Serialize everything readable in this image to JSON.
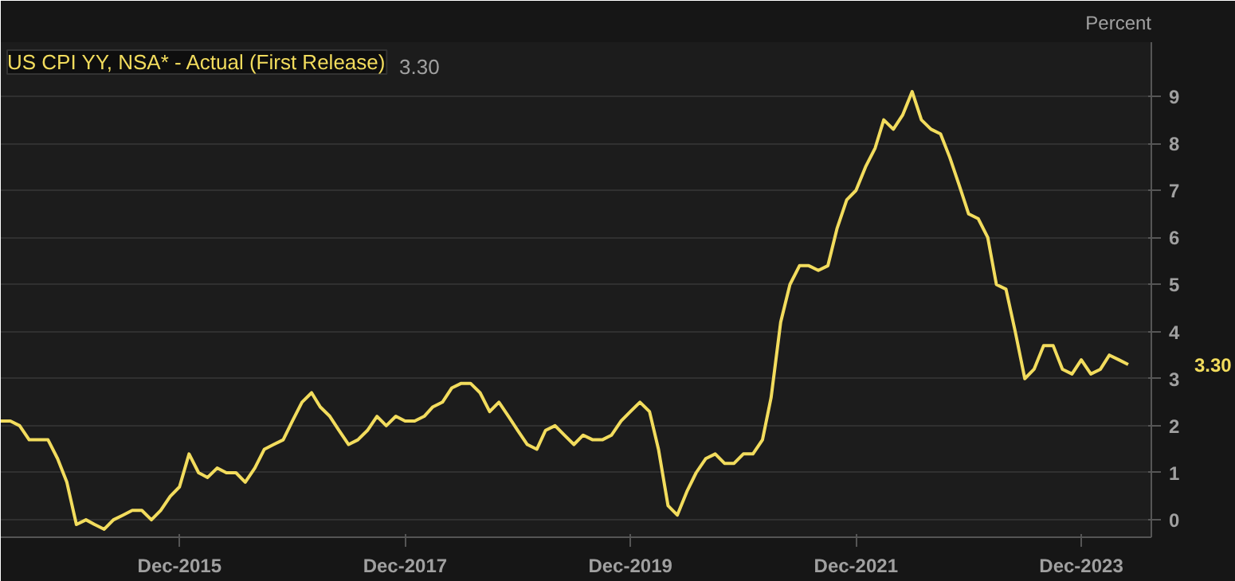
{
  "chart_data": {
    "type": "line",
    "title": "US CPI YY, NSA* - Actual (First Release)",
    "ylabel": "Percent",
    "annotations": [
      "3.30",
      "3.30"
    ],
    "x": [
      "2014-05",
      "2014-06",
      "2014-07",
      "2014-08",
      "2014-09",
      "2014-10",
      "2014-11",
      "2014-12",
      "2015-01",
      "2015-02",
      "2015-03",
      "2015-04",
      "2015-05",
      "2015-06",
      "2015-07",
      "2015-08",
      "2015-09",
      "2015-10",
      "2015-11",
      "2015-12",
      "2016-01",
      "2016-02",
      "2016-03",
      "2016-04",
      "2016-05",
      "2016-06",
      "2016-07",
      "2016-08",
      "2016-09",
      "2016-10",
      "2016-11",
      "2016-12",
      "2017-01",
      "2017-02",
      "2017-03",
      "2017-04",
      "2017-05",
      "2017-06",
      "2017-07",
      "2017-08",
      "2017-09",
      "2017-10",
      "2017-11",
      "2017-12",
      "2018-01",
      "2018-02",
      "2018-03",
      "2018-04",
      "2018-05",
      "2018-06",
      "2018-07",
      "2018-08",
      "2018-09",
      "2018-10",
      "2018-11",
      "2018-12",
      "2019-01",
      "2019-02",
      "2019-03",
      "2019-04",
      "2019-05",
      "2019-06",
      "2019-07",
      "2019-08",
      "2019-09",
      "2019-10",
      "2019-11",
      "2019-12",
      "2020-01",
      "2020-02",
      "2020-03",
      "2020-04",
      "2020-05",
      "2020-06",
      "2020-07",
      "2020-08",
      "2020-09",
      "2020-10",
      "2020-11",
      "2020-12",
      "2021-01",
      "2021-02",
      "2021-03",
      "2021-04",
      "2021-05",
      "2021-06",
      "2021-07",
      "2021-08",
      "2021-09",
      "2021-10",
      "2021-11",
      "2021-12",
      "2022-01",
      "2022-02",
      "2022-03",
      "2022-04",
      "2022-05",
      "2022-06",
      "2022-07",
      "2022-08",
      "2022-09",
      "2022-10",
      "2022-11",
      "2022-12",
      "2023-01",
      "2023-02",
      "2023-03",
      "2023-04",
      "2023-05",
      "2023-06",
      "2023-07",
      "2023-08",
      "2023-09",
      "2023-10",
      "2023-11",
      "2023-12",
      "2024-01",
      "2024-02",
      "2024-03",
      "2024-04",
      "2024-05"
    ],
    "series": [
      {
        "color": "#f2dc5d",
        "values": [
          2.1,
          2.1,
          2.0,
          1.7,
          1.7,
          1.7,
          1.3,
          0.8,
          -0.1,
          0.0,
          -0.1,
          -0.2,
          0.0,
          0.1,
          0.2,
          0.2,
          0.0,
          0.2,
          0.5,
          0.7,
          1.4,
          1.0,
          0.9,
          1.1,
          1.0,
          1.0,
          0.8,
          1.1,
          1.5,
          1.6,
          1.7,
          2.1,
          2.5,
          2.7,
          2.4,
          2.2,
          1.9,
          1.6,
          1.7,
          1.9,
          2.2,
          2.0,
          2.2,
          2.1,
          2.1,
          2.2,
          2.4,
          2.5,
          2.8,
          2.9,
          2.9,
          2.7,
          2.3,
          2.5,
          2.2,
          1.9,
          1.6,
          1.5,
          1.9,
          2.0,
          1.8,
          1.6,
          1.8,
          1.7,
          1.7,
          1.8,
          2.1,
          2.3,
          2.5,
          2.3,
          1.5,
          0.3,
          0.1,
          0.6,
          1.0,
          1.3,
          1.4,
          1.2,
          1.2,
          1.4,
          1.4,
          1.7,
          2.6,
          4.2,
          5.0,
          5.4,
          5.4,
          5.3,
          5.4,
          6.2,
          6.8,
          7.0,
          7.5,
          7.9,
          8.5,
          8.3,
          8.6,
          9.1,
          8.5,
          8.3,
          8.2,
          7.7,
          7.1,
          6.5,
          6.4,
          6.0,
          5.0,
          4.9,
          4.0,
          3.0,
          3.2,
          3.7,
          3.7,
          3.2,
          3.1,
          3.4,
          3.1,
          3.2,
          3.5,
          3.4,
          3.3
        ]
      }
    ],
    "xlim": [
      "2014-05",
      "2024-07-15"
    ],
    "xticks": [
      {
        "value": "2015-12",
        "label": "Dec-2015"
      },
      {
        "value": "2017-12",
        "label": "Dec-2017"
      },
      {
        "value": "2019-12",
        "label": "Dec-2019"
      },
      {
        "value": "2021-12",
        "label": "Dec-2021"
      },
      {
        "value": "2023-12",
        "label": "Dec-2023"
      }
    ],
    "ylim": [
      -0.37,
      10.15
    ],
    "yticks": [
      0,
      1,
      2,
      3,
      4,
      5,
      6,
      7,
      8,
      9
    ],
    "grid": "y",
    "line_style": "solid"
  }
}
